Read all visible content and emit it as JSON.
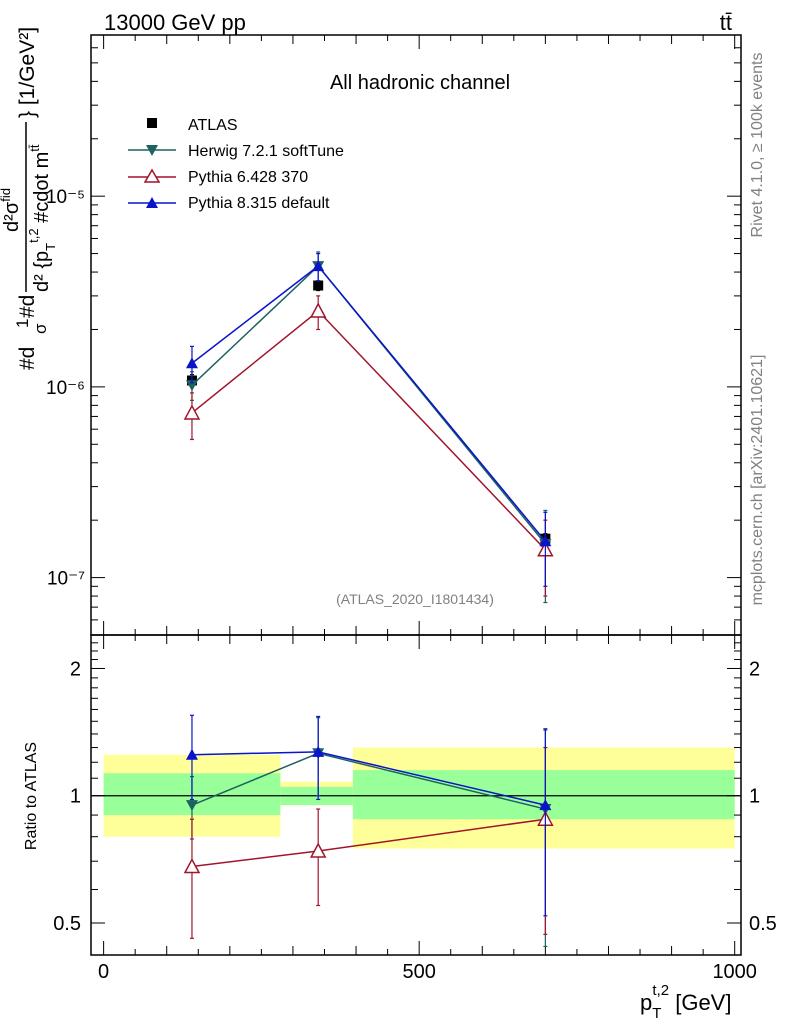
{
  "header": {
    "energy": "13000 GeV pp",
    "process": "tt̄"
  },
  "side_labels": {
    "rivet": "Rivet 4.1.0, ≥ 100k events",
    "mcplots": "mcplots.cern.ch [arXiv:2401.10621]"
  },
  "chart_data": [
    {
      "type": "line",
      "panel": "main",
      "title": "All hadronic channel",
      "analysis_tag": "(ATLAS_2020_I1801434)",
      "ylabel": "#d1/σ #d d²σ^fid / d² {p_T^t,2 #cdot m^tt̄} [1/GeV²]",
      "ylabel_parts": {
        "line1_a": "#d",
        "line1_b": "1",
        "line1_c": "σ",
        "line1_d": "#d",
        "frac_num": "d²σ",
        "frac_num_sup": "fid",
        "frac_den": "d² {p",
        "frac_den_sub": "T",
        "frac_den_sup": "t,2",
        "frac_den_rest": " #cdot m",
        "frac_den_sup2": "tt̄",
        "units": "} [1/GeV²]"
      },
      "yscale": "log",
      "ylim": [
        5e-08,
        7e-05
      ],
      "xlim": [
        -20,
        1010
      ],
      "y_ticks": [
        {
          "value": 1e-07,
          "label": "10⁻⁷"
        },
        {
          "value": 1e-06,
          "label": "10⁻⁶"
        },
        {
          "value": 1e-05,
          "label": "10⁻⁵"
        }
      ],
      "x": [
        140,
        340,
        700
      ],
      "series": [
        {
          "name": "ATLAS",
          "marker": "square",
          "color": "#000000",
          "values": [
            1.08e-06,
            3.4e-06,
            1.6e-07
          ],
          "err_lo": [
            1e-06,
            3.2e-06,
            1.5e-07
          ],
          "err_hi": [
            1.16e-06,
            3.6e-06,
            1.7e-07
          ],
          "line": false
        },
        {
          "name": "Herwig 7.2.1 softTune",
          "marker": "triangle-down",
          "color": "#1d6260",
          "values": [
            1.02e-06,
            4.3e-06,
            1.5e-07
          ],
          "err_lo": [
            8.5e-07,
            3.6e-06,
            7.4e-08
          ],
          "err_hi": [
            1.2e-06,
            5.1e-06,
            2.25e-07
          ],
          "line": true
        },
        {
          "name": "Pythia 6.428 370",
          "marker": "triangle-up-open",
          "color": "#a0152c",
          "values": [
            7.3e-07,
            2.5e-06,
            1.4e-07
          ],
          "err_lo": [
            5.3e-07,
            2e-06,
            8e-08
          ],
          "err_hi": [
            9.3e-07,
            3e-06,
            2e-07
          ],
          "line": true
        },
        {
          "name": "Pythia 8.315 default",
          "marker": "triangle-up",
          "color": "#0a14c8",
          "values": [
            1.33e-06,
            4.3e-06,
            1.55e-07
          ],
          "err_lo": [
            1.05e-06,
            3.6e-06,
            9e-08
          ],
          "err_hi": [
            1.63e-06,
            5e-06,
            2.2e-07
          ],
          "line": true
        }
      ]
    },
    {
      "type": "line",
      "panel": "ratio",
      "ylabel": "Ratio to ATLAS",
      "xlabel": "p_T^t,2 [GeV]",
      "xlabel_parts": {
        "main": "p",
        "sub": "T",
        "sup": "t,2",
        "units": " [GeV]"
      },
      "yscale": "log",
      "ylim": [
        0.42,
        2.4
      ],
      "xlim": [
        -20,
        1010
      ],
      "x_ticks": [
        {
          "value": 0,
          "label": "0"
        },
        {
          "value": 500,
          "label": "500"
        },
        {
          "value": 1000,
          "label": "1000"
        }
      ],
      "y_ticks": [
        {
          "value": 0.5,
          "label": "0.5"
        },
        {
          "value": 1,
          "label": "1"
        },
        {
          "value": 2,
          "label": "2"
        }
      ],
      "bands": [
        {
          "x0": 0,
          "x1": 280,
          "inner": [
            0.9,
            1.13
          ],
          "outer": [
            0.8,
            1.25
          ]
        },
        {
          "x0": 280,
          "x1": 395,
          "inner": [
            0.95,
            1.05
          ],
          "outer": [
            0.95,
            1.08
          ]
        },
        {
          "x0": 395,
          "x1": 1000,
          "inner": [
            0.88,
            1.15
          ],
          "outer": [
            0.75,
            1.3
          ]
        }
      ],
      "band_colors": {
        "inner": "#99ff99",
        "outer": "#ffff99"
      },
      "x": [
        140,
        340,
        700
      ],
      "series": [
        {
          "name": "Herwig 7.2.1 softTune",
          "marker": "triangle-down",
          "color": "#1d6260",
          "values": [
            0.95,
            1.26,
            0.93
          ],
          "err_lo": [
            0.79,
            1.0,
            0.44
          ],
          "err_hi": [
            1.11,
            1.53,
            1.43
          ]
        },
        {
          "name": "Pythia 6.428 370",
          "marker": "triangle-up-open",
          "color": "#a0152c",
          "values": [
            0.68,
            0.74,
            0.88
          ],
          "err_lo": [
            0.46,
            0.55,
            0.47
          ],
          "err_hi": [
            0.88,
            0.93,
            1.3
          ]
        },
        {
          "name": "Pythia 8.315 default",
          "marker": "triangle-up",
          "color": "#0a14c8",
          "values": [
            1.25,
            1.27,
            0.95
          ],
          "err_lo": [
            0.98,
            0.98,
            0.52
          ],
          "err_hi": [
            1.55,
            1.54,
            1.44
          ]
        }
      ]
    }
  ]
}
